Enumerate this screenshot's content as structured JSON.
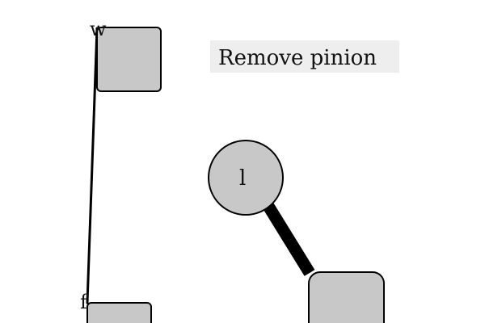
{
  "instruction": {
    "text": "Remove pinion"
  },
  "nodes": {
    "w": {
      "label": "w",
      "shape": "rounded-square"
    },
    "pinion": {
      "label": "l",
      "shape": "circle"
    },
    "f": {
      "label": "f",
      "shape": "rounded-square"
    },
    "gear_block": {
      "label": "",
      "shape": "rounded-square"
    }
  },
  "links": {
    "w_to_f": {
      "style": "thin"
    },
    "pinion_to_block": {
      "style": "thick"
    }
  },
  "colors": {
    "shape_fill": "#c8c8c8",
    "stroke": "#000000",
    "instruction_background": "#eeeeee",
    "background": "#ffffff"
  }
}
